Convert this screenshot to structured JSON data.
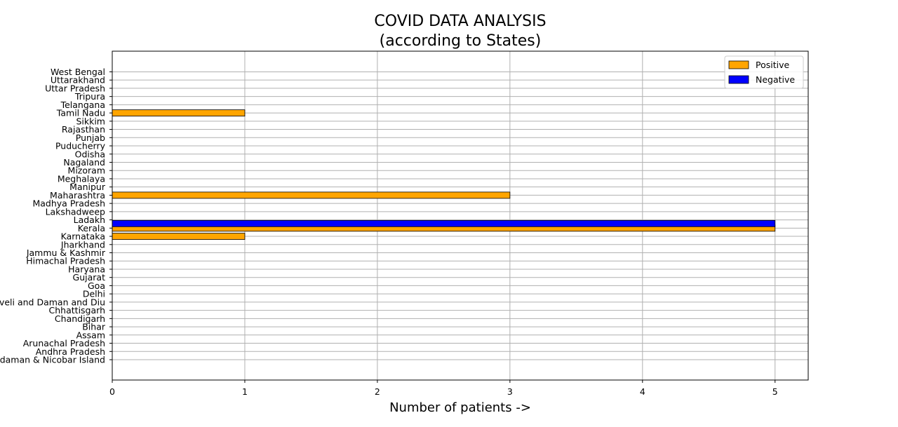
{
  "chart_data": {
    "type": "bar",
    "orientation": "horizontal",
    "title_line1": "COVID DATA ANALYSIS",
    "title_line2": "(according to States)",
    "xlabel": "Number of patients ->",
    "ylabel": "",
    "xlim": [
      0,
      5.25
    ],
    "xticks": [
      0,
      1,
      2,
      3,
      4,
      5
    ],
    "grid": true,
    "legend_placement": "top-right",
    "categories": [
      "Andaman & Nicobar Island",
      "Andhra Pradesh",
      "Arunachal Pradesh",
      "Assam",
      "Bihar",
      "Chandigarh",
      "Chhattisgarh",
      "Dadra and Nagar Haveli and Daman and Diu",
      "Delhi",
      "Goa",
      "Gujarat",
      "Haryana",
      "Himachal Pradesh",
      "Jammu & Kashmir",
      "Jharkhand",
      "Karnataka",
      "Kerala",
      "Ladakh",
      "Lakshadweep",
      "Madhya Pradesh",
      "Maharashtra",
      "Manipur",
      "Meghalaya",
      "Mizoram",
      "Nagaland",
      "Odisha",
      "Puducherry",
      "Punjab",
      "Rajasthan",
      "Sikkim",
      "Tamil Nadu",
      "Telangana",
      "Tripura",
      "Uttar Pradesh",
      "Uttarakhand",
      "West Bengal"
    ],
    "series": [
      {
        "name": "Positive",
        "color": "#ffa500",
        "values": [
          0,
          0,
          0,
          0,
          0,
          0,
          0,
          0,
          0,
          0,
          0,
          0,
          0,
          0,
          0,
          1,
          5,
          0,
          0,
          0,
          3,
          0,
          0,
          0,
          0,
          0,
          0,
          0,
          0,
          0,
          1,
          0,
          0,
          0,
          0,
          0
        ]
      },
      {
        "name": "Negative",
        "color": "#0000ff",
        "values": [
          0,
          0,
          0,
          0,
          0,
          0,
          0,
          0,
          0,
          0,
          0,
          0,
          0,
          0,
          0,
          0,
          5,
          0,
          0,
          0,
          0,
          0,
          0,
          0,
          0,
          0,
          0,
          0,
          0,
          0,
          0,
          0,
          0,
          0,
          0,
          0
        ]
      }
    ]
  }
}
